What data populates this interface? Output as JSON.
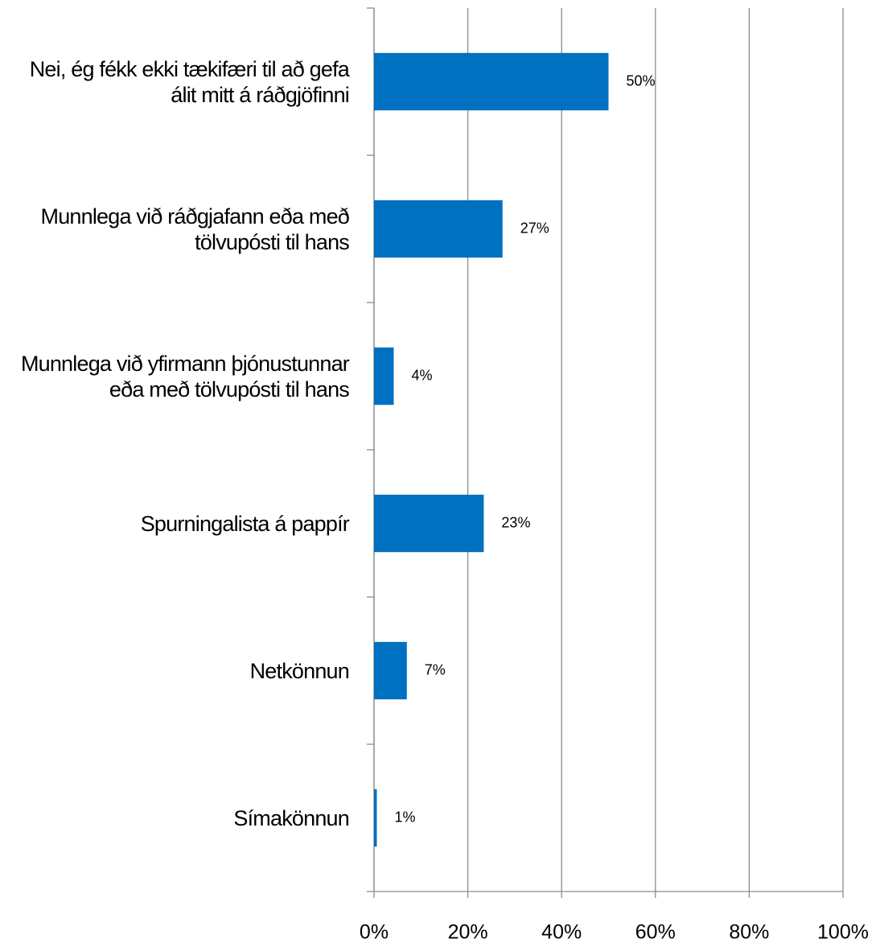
{
  "chart_data": {
    "type": "barh",
    "categories": [
      "Nei, ég fékk ekki tækifæri til að gefa álit mitt á ráðgjöfinni",
      "Munnlega við ráðgjafann eða með tölvupósti til hans",
      "Munnlega við yfirmann þjónustunnar eða með tölvupósti til hans",
      "Spurningalista á pappír",
      "Netkönnun",
      "Símakönnun"
    ],
    "values": [
      50,
      27.4,
      4.2,
      23.4,
      7,
      0.6
    ],
    "value_labels": [
      "50%",
      "27%",
      "4%",
      "23%",
      "7%",
      "1%"
    ],
    "color": "#0070c0",
    "xlim": [
      0,
      100
    ],
    "xticks": [
      {
        "value": 0,
        "label": "0%"
      },
      {
        "value": 20,
        "label": "20%"
      },
      {
        "value": 40,
        "label": "40%"
      },
      {
        "value": 60,
        "label": "60%"
      },
      {
        "value": 80,
        "label": "80%"
      },
      {
        "value": 100,
        "label": "100%"
      }
    ],
    "grid": true
  }
}
